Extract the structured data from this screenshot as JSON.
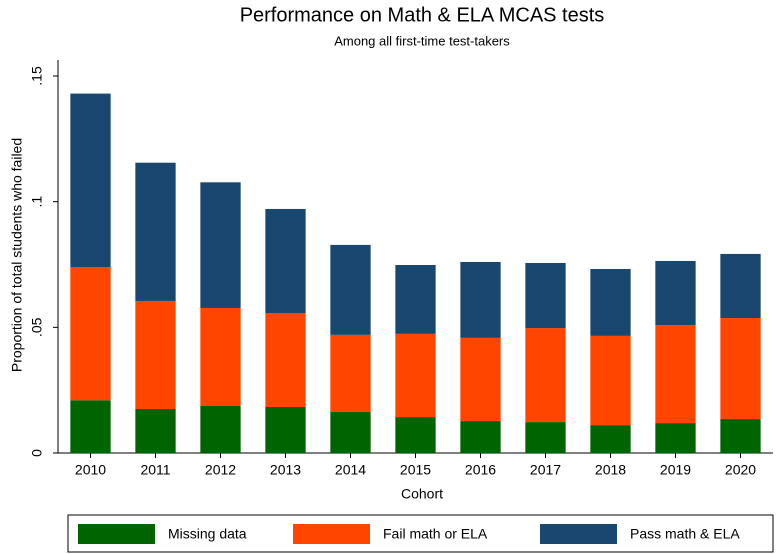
{
  "chart_data": {
    "type": "stacked_bar",
    "title": "Performance on Math & ELA MCAS tests",
    "subtitle": "Among all first-time test-takers",
    "x_label": "Cohort",
    "y_label": "Proportion of total students who failed",
    "categories": [
      "2010",
      "2011",
      "2012",
      "2013",
      "2014",
      "2015",
      "2016",
      "2017",
      "2018",
      "2019",
      "2020"
    ],
    "series": [
      {
        "name": "Missing data",
        "color": "#006400",
        "values": [
          0.021,
          0.0175,
          0.0187,
          0.0183,
          0.0163,
          0.0143,
          0.0127,
          0.0123,
          0.0111,
          0.0119,
          0.0135
        ]
      },
      {
        "name": "Fail math or ELA",
        "color": "#ff4500",
        "values": [
          0.053,
          0.043,
          0.039,
          0.0374,
          0.0307,
          0.0331,
          0.0331,
          0.0374,
          0.0355,
          0.039,
          0.0402
        ]
      },
      {
        "name": "Pass math & ELA",
        "color": "#1a476f",
        "values": [
          0.069,
          0.055,
          0.05,
          0.0414,
          0.0358,
          0.0274,
          0.0302,
          0.0259,
          0.0266,
          0.0255,
          0.0255
        ]
      }
    ],
    "ylim": [
      0,
      0.15
    ],
    "yticks": [
      0,
      {
        "value": 0.05,
        "label": ".05"
      },
      {
        "value": 0.1,
        "label": ".1"
      },
      {
        "value": 0.15,
        "label": ".15"
      }
    ],
    "grid": false,
    "legend": "bottom"
  }
}
